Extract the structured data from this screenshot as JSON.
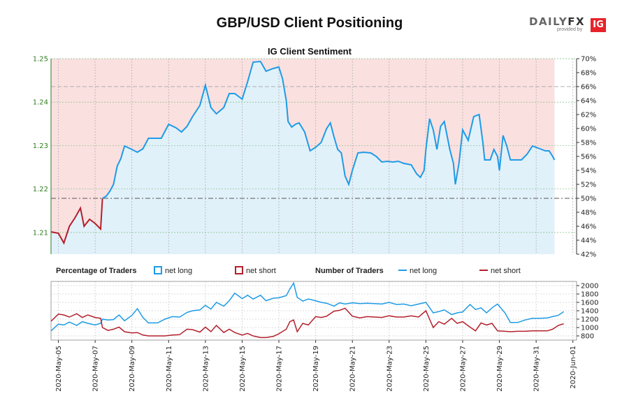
{
  "title": "GBP/USD Client Positioning",
  "logo": {
    "brand_a": "DAILY",
    "brand_b": "FX",
    "provided_by": "provided by",
    "ig": "IG"
  },
  "chart_data": [
    {
      "id": "sentiment",
      "type": "line",
      "title": "IG Client Sentiment",
      "price_axis": {
        "ylim": [
          1.205,
          1.25
        ],
        "ticks": [
          "1.21",
          "1.22",
          "1.23",
          "1.24",
          "1.25"
        ],
        "color": "#2e7d1e"
      },
      "pct_axis": {
        "ylim": [
          42,
          70
        ],
        "ticks": [
          "42%",
          "44%",
          "46%",
          "48%",
          "50%",
          "52%",
          "54%",
          "56%",
          "58%",
          "60%",
          "62%",
          "64%",
          "66%",
          "68%",
          "70%"
        ]
      },
      "reference_line": 50,
      "x_dates": [
        "2020-May-05",
        "2020-May-07",
        "2020-May-09",
        "2020-May-11",
        "2020-May-13",
        "2020-May-15",
        "2020-May-17",
        "2020-May-19",
        "2020-May-21",
        "2020-May-23",
        "2020-May-25",
        "2020-May-27",
        "2020-May-29",
        "2020-May-31",
        "2020-Jun-01"
      ],
      "x_range_days": [
        -0.4,
        28.2
      ],
      "net_long_pct": [
        [
          -0.4,
          45.2
        ],
        [
          0,
          45.0
        ],
        [
          0.3,
          43.6
        ],
        [
          0.6,
          46.0
        ],
        [
          0.9,
          47.2
        ],
        [
          1.2,
          48.6
        ],
        [
          1.4,
          46.0
        ],
        [
          1.7,
          47.0
        ],
        [
          2.0,
          46.4
        ],
        [
          2.3,
          45.6
        ],
        [
          2.4,
          50.0
        ],
        [
          2.6,
          50.3
        ],
        [
          2.8,
          51.0
        ],
        [
          3.0,
          52.0
        ],
        [
          3.2,
          54.6
        ],
        [
          3.4,
          55.7
        ],
        [
          3.6,
          57.5
        ],
        [
          4.0,
          57.0
        ],
        [
          4.3,
          56.6
        ],
        [
          4.6,
          57.1
        ],
        [
          4.9,
          58.6
        ],
        [
          5.3,
          58.6
        ],
        [
          5.6,
          58.6
        ],
        [
          6.0,
          60.6
        ],
        [
          6.4,
          60.1
        ],
        [
          6.7,
          59.5
        ],
        [
          7.0,
          60.3
        ],
        [
          7.3,
          61.7
        ],
        [
          7.7,
          63.3
        ],
        [
          8.0,
          66.2
        ],
        [
          8.3,
          63.0
        ],
        [
          8.6,
          62.1
        ],
        [
          9.0,
          63.0
        ],
        [
          9.3,
          65.0
        ],
        [
          9.6,
          65.0
        ],
        [
          10.0,
          64.2
        ],
        [
          10.3,
          66.7
        ],
        [
          10.6,
          69.5
        ],
        [
          11.0,
          69.6
        ],
        [
          11.3,
          68.2
        ],
        [
          11.7,
          68.6
        ],
        [
          12.0,
          68.8
        ],
        [
          12.2,
          67.1
        ],
        [
          12.4,
          64.0
        ],
        [
          12.5,
          61.0
        ],
        [
          12.7,
          60.2
        ],
        [
          12.9,
          60.6
        ],
        [
          13.1,
          60.8
        ],
        [
          13.4,
          59.5
        ],
        [
          13.7,
          56.8
        ],
        [
          14.0,
          57.3
        ],
        [
          14.3,
          58.0
        ],
        [
          14.6,
          60.0
        ],
        [
          14.8,
          60.8
        ],
        [
          15.0,
          58.8
        ],
        [
          15.2,
          57.0
        ],
        [
          15.4,
          56.5
        ],
        [
          15.6,
          53.2
        ],
        [
          15.8,
          52.0
        ],
        [
          16.0,
          54.0
        ],
        [
          16.3,
          56.5
        ],
        [
          16.6,
          56.6
        ],
        [
          17.0,
          56.5
        ],
        [
          17.3,
          56.0
        ],
        [
          17.6,
          55.2
        ],
        [
          17.9,
          55.3
        ],
        [
          18.2,
          55.2
        ],
        [
          18.5,
          55.3
        ],
        [
          18.8,
          55.0
        ],
        [
          19.2,
          54.8
        ],
        [
          19.5,
          53.5
        ],
        [
          19.7,
          53.0
        ],
        [
          19.9,
          54.0
        ],
        [
          20.0,
          57.0
        ],
        [
          20.2,
          61.4
        ],
        [
          20.4,
          59.8
        ],
        [
          20.6,
          57.0
        ],
        [
          20.8,
          60.3
        ],
        [
          21.0,
          61.0
        ],
        [
          21.3,
          57.0
        ],
        [
          21.5,
          55.0
        ],
        [
          21.6,
          52.0
        ],
        [
          21.8,
          55.0
        ],
        [
          22.0,
          59.8
        ],
        [
          22.3,
          58.3
        ],
        [
          22.6,
          61.7
        ],
        [
          22.9,
          62.0
        ],
        [
          23.1,
          58.0
        ],
        [
          23.2,
          55.5
        ],
        [
          23.5,
          55.5
        ],
        [
          23.7,
          57.0
        ],
        [
          23.9,
          56.0
        ],
        [
          24.0,
          54.0
        ],
        [
          24.2,
          59.0
        ],
        [
          24.4,
          57.5
        ],
        [
          24.6,
          55.5
        ],
        [
          24.9,
          55.5
        ],
        [
          25.2,
          55.5
        ],
        [
          25.5,
          56.3
        ],
        [
          25.8,
          57.5
        ],
        [
          26.2,
          57.1
        ],
        [
          26.5,
          56.8
        ],
        [
          26.7,
          56.8
        ],
        [
          26.9,
          56.0
        ],
        [
          27.0,
          55.5
        ]
      ],
      "net_short_pct_area": "complement of net_long_pct (100 - net long), shaded above"
    },
    {
      "id": "traders",
      "type": "line",
      "legend_left": "Percentage of Traders",
      "legend_right": "Number of Traders",
      "series_labels": {
        "pct_long": "net long",
        "pct_short": "net short",
        "num_long": "net long",
        "num_short": "net short"
      },
      "ylim": [
        700,
        2100
      ],
      "ticks": [
        "800",
        "1000",
        "1200",
        "1400",
        "1600",
        "1800",
        "2000"
      ],
      "net_long_count": [
        [
          -0.4,
          920
        ],
        [
          0,
          1080
        ],
        [
          0.3,
          1060
        ],
        [
          0.6,
          1130
        ],
        [
          1.0,
          1050
        ],
        [
          1.3,
          1140
        ],
        [
          1.6,
          1100
        ],
        [
          2.0,
          1060
        ],
        [
          2.3,
          1100
        ],
        [
          2.4,
          1200
        ],
        [
          2.7,
          1180
        ],
        [
          3.0,
          1190
        ],
        [
          3.3,
          1300
        ],
        [
          3.6,
          1160
        ],
        [
          4.0,
          1290
        ],
        [
          4.3,
          1450
        ],
        [
          4.6,
          1240
        ],
        [
          4.9,
          1110
        ],
        [
          5.4,
          1110
        ],
        [
          5.8,
          1200
        ],
        [
          6.2,
          1260
        ],
        [
          6.6,
          1250
        ],
        [
          7.0,
          1360
        ],
        [
          7.3,
          1400
        ],
        [
          7.7,
          1420
        ],
        [
          8.0,
          1530
        ],
        [
          8.3,
          1440
        ],
        [
          8.6,
          1600
        ],
        [
          9.0,
          1510
        ],
        [
          9.3,
          1640
        ],
        [
          9.6,
          1820
        ],
        [
          10.0,
          1690
        ],
        [
          10.3,
          1770
        ],
        [
          10.6,
          1680
        ],
        [
          11.0,
          1770
        ],
        [
          11.3,
          1640
        ],
        [
          11.7,
          1700
        ],
        [
          12.0,
          1710
        ],
        [
          12.4,
          1760
        ],
        [
          12.6,
          1920
        ],
        [
          12.8,
          2060
        ],
        [
          13.0,
          1720
        ],
        [
          13.3,
          1630
        ],
        [
          13.6,
          1680
        ],
        [
          14.0,
          1640
        ],
        [
          14.3,
          1600
        ],
        [
          14.6,
          1580
        ],
        [
          15.0,
          1510
        ],
        [
          15.3,
          1590
        ],
        [
          15.6,
          1560
        ],
        [
          16.0,
          1590
        ],
        [
          16.4,
          1570
        ],
        [
          16.8,
          1580
        ],
        [
          17.2,
          1570
        ],
        [
          17.6,
          1560
        ],
        [
          18.0,
          1600
        ],
        [
          18.4,
          1550
        ],
        [
          18.8,
          1560
        ],
        [
          19.2,
          1520
        ],
        [
          19.6,
          1560
        ],
        [
          20.0,
          1600
        ],
        [
          20.4,
          1350
        ],
        [
          20.7,
          1380
        ],
        [
          21.0,
          1420
        ],
        [
          21.4,
          1310
        ],
        [
          21.7,
          1350
        ],
        [
          22.0,
          1370
        ],
        [
          22.4,
          1550
        ],
        [
          22.7,
          1430
        ],
        [
          23.0,
          1470
        ],
        [
          23.3,
          1350
        ],
        [
          23.6,
          1470
        ],
        [
          23.9,
          1560
        ],
        [
          24.3,
          1350
        ],
        [
          24.6,
          1120
        ],
        [
          25.0,
          1120
        ],
        [
          25.4,
          1180
        ],
        [
          25.8,
          1220
        ],
        [
          26.2,
          1220
        ],
        [
          26.6,
          1230
        ],
        [
          26.9,
          1260
        ],
        [
          27.2,
          1290
        ],
        [
          27.5,
          1380
        ]
      ],
      "net_short_count": [
        [
          -0.4,
          1150
        ],
        [
          0,
          1320
        ],
        [
          0.3,
          1300
        ],
        [
          0.6,
          1250
        ],
        [
          1.0,
          1330
        ],
        [
          1.3,
          1240
        ],
        [
          1.6,
          1300
        ],
        [
          2.0,
          1240
        ],
        [
          2.3,
          1220
        ],
        [
          2.4,
          1000
        ],
        [
          2.7,
          930
        ],
        [
          3.0,
          960
        ],
        [
          3.3,
          1010
        ],
        [
          3.6,
          900
        ],
        [
          4.0,
          870
        ],
        [
          4.3,
          880
        ],
        [
          4.6,
          820
        ],
        [
          4.9,
          800
        ],
        [
          5.4,
          800
        ],
        [
          5.8,
          800
        ],
        [
          6.2,
          820
        ],
        [
          6.6,
          830
        ],
        [
          7.0,
          960
        ],
        [
          7.3,
          950
        ],
        [
          7.7,
          890
        ],
        [
          8.0,
          1010
        ],
        [
          8.3,
          900
        ],
        [
          8.6,
          1050
        ],
        [
          9.0,
          880
        ],
        [
          9.3,
          960
        ],
        [
          9.6,
          880
        ],
        [
          10.0,
          820
        ],
        [
          10.3,
          860
        ],
        [
          10.6,
          800
        ],
        [
          11.0,
          760
        ],
        [
          11.3,
          760
        ],
        [
          11.7,
          790
        ],
        [
          12.0,
          850
        ],
        [
          12.4,
          960
        ],
        [
          12.6,
          1140
        ],
        [
          12.8,
          1180
        ],
        [
          13.0,
          900
        ],
        [
          13.3,
          1100
        ],
        [
          13.6,
          1060
        ],
        [
          14.0,
          1260
        ],
        [
          14.3,
          1240
        ],
        [
          14.6,
          1270
        ],
        [
          15.0,
          1390
        ],
        [
          15.3,
          1410
        ],
        [
          15.6,
          1460
        ],
        [
          16.0,
          1270
        ],
        [
          16.4,
          1230
        ],
        [
          16.8,
          1260
        ],
        [
          17.2,
          1250
        ],
        [
          17.6,
          1240
        ],
        [
          18.0,
          1280
        ],
        [
          18.4,
          1250
        ],
        [
          18.8,
          1250
        ],
        [
          19.2,
          1280
        ],
        [
          19.6,
          1250
        ],
        [
          20.0,
          1400
        ],
        [
          20.4,
          1000
        ],
        [
          20.7,
          1140
        ],
        [
          21.0,
          1080
        ],
        [
          21.4,
          1220
        ],
        [
          21.7,
          1100
        ],
        [
          22.0,
          1140
        ],
        [
          22.4,
          1010
        ],
        [
          22.7,
          920
        ],
        [
          23.0,
          1110
        ],
        [
          23.3,
          1060
        ],
        [
          23.6,
          1100
        ],
        [
          23.9,
          920
        ],
        [
          24.3,
          910
        ],
        [
          24.6,
          900
        ],
        [
          25.0,
          910
        ],
        [
          25.4,
          910
        ],
        [
          25.8,
          920
        ],
        [
          26.2,
          920
        ],
        [
          26.6,
          920
        ],
        [
          26.9,
          960
        ],
        [
          27.2,
          1050
        ],
        [
          27.5,
          1090
        ]
      ]
    }
  ]
}
